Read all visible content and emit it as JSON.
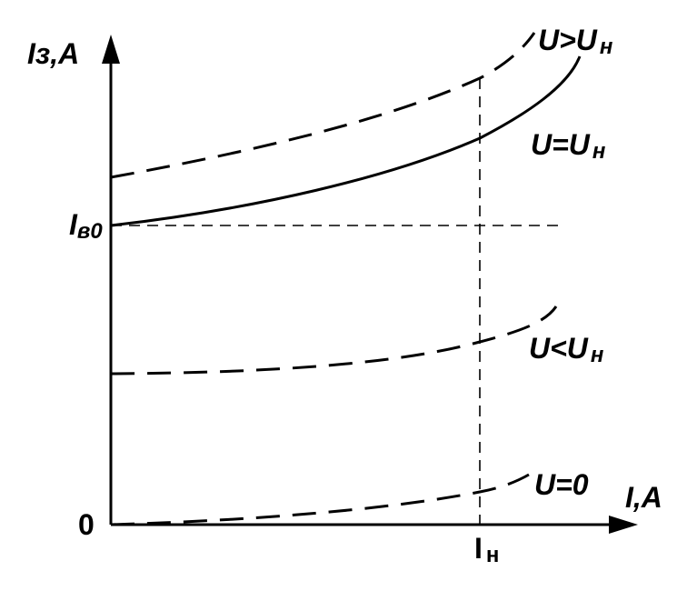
{
  "diagram": {
    "y_axis_label": "Iз,A",
    "x_axis_label": "I,A",
    "origin_label": "0",
    "y_mark_label_main": "I",
    "y_mark_label_sub": "в0",
    "x_mark_label_main": "I",
    "x_mark_label_sub": "н",
    "curves": [
      {
        "label_main": "U>U",
        "label_sub": "н"
      },
      {
        "label_main": "U=U",
        "label_sub": "н"
      },
      {
        "label_main": "U<U",
        "label_sub": "н"
      },
      {
        "label_main": "U=0",
        "label_sub": ""
      }
    ]
  }
}
